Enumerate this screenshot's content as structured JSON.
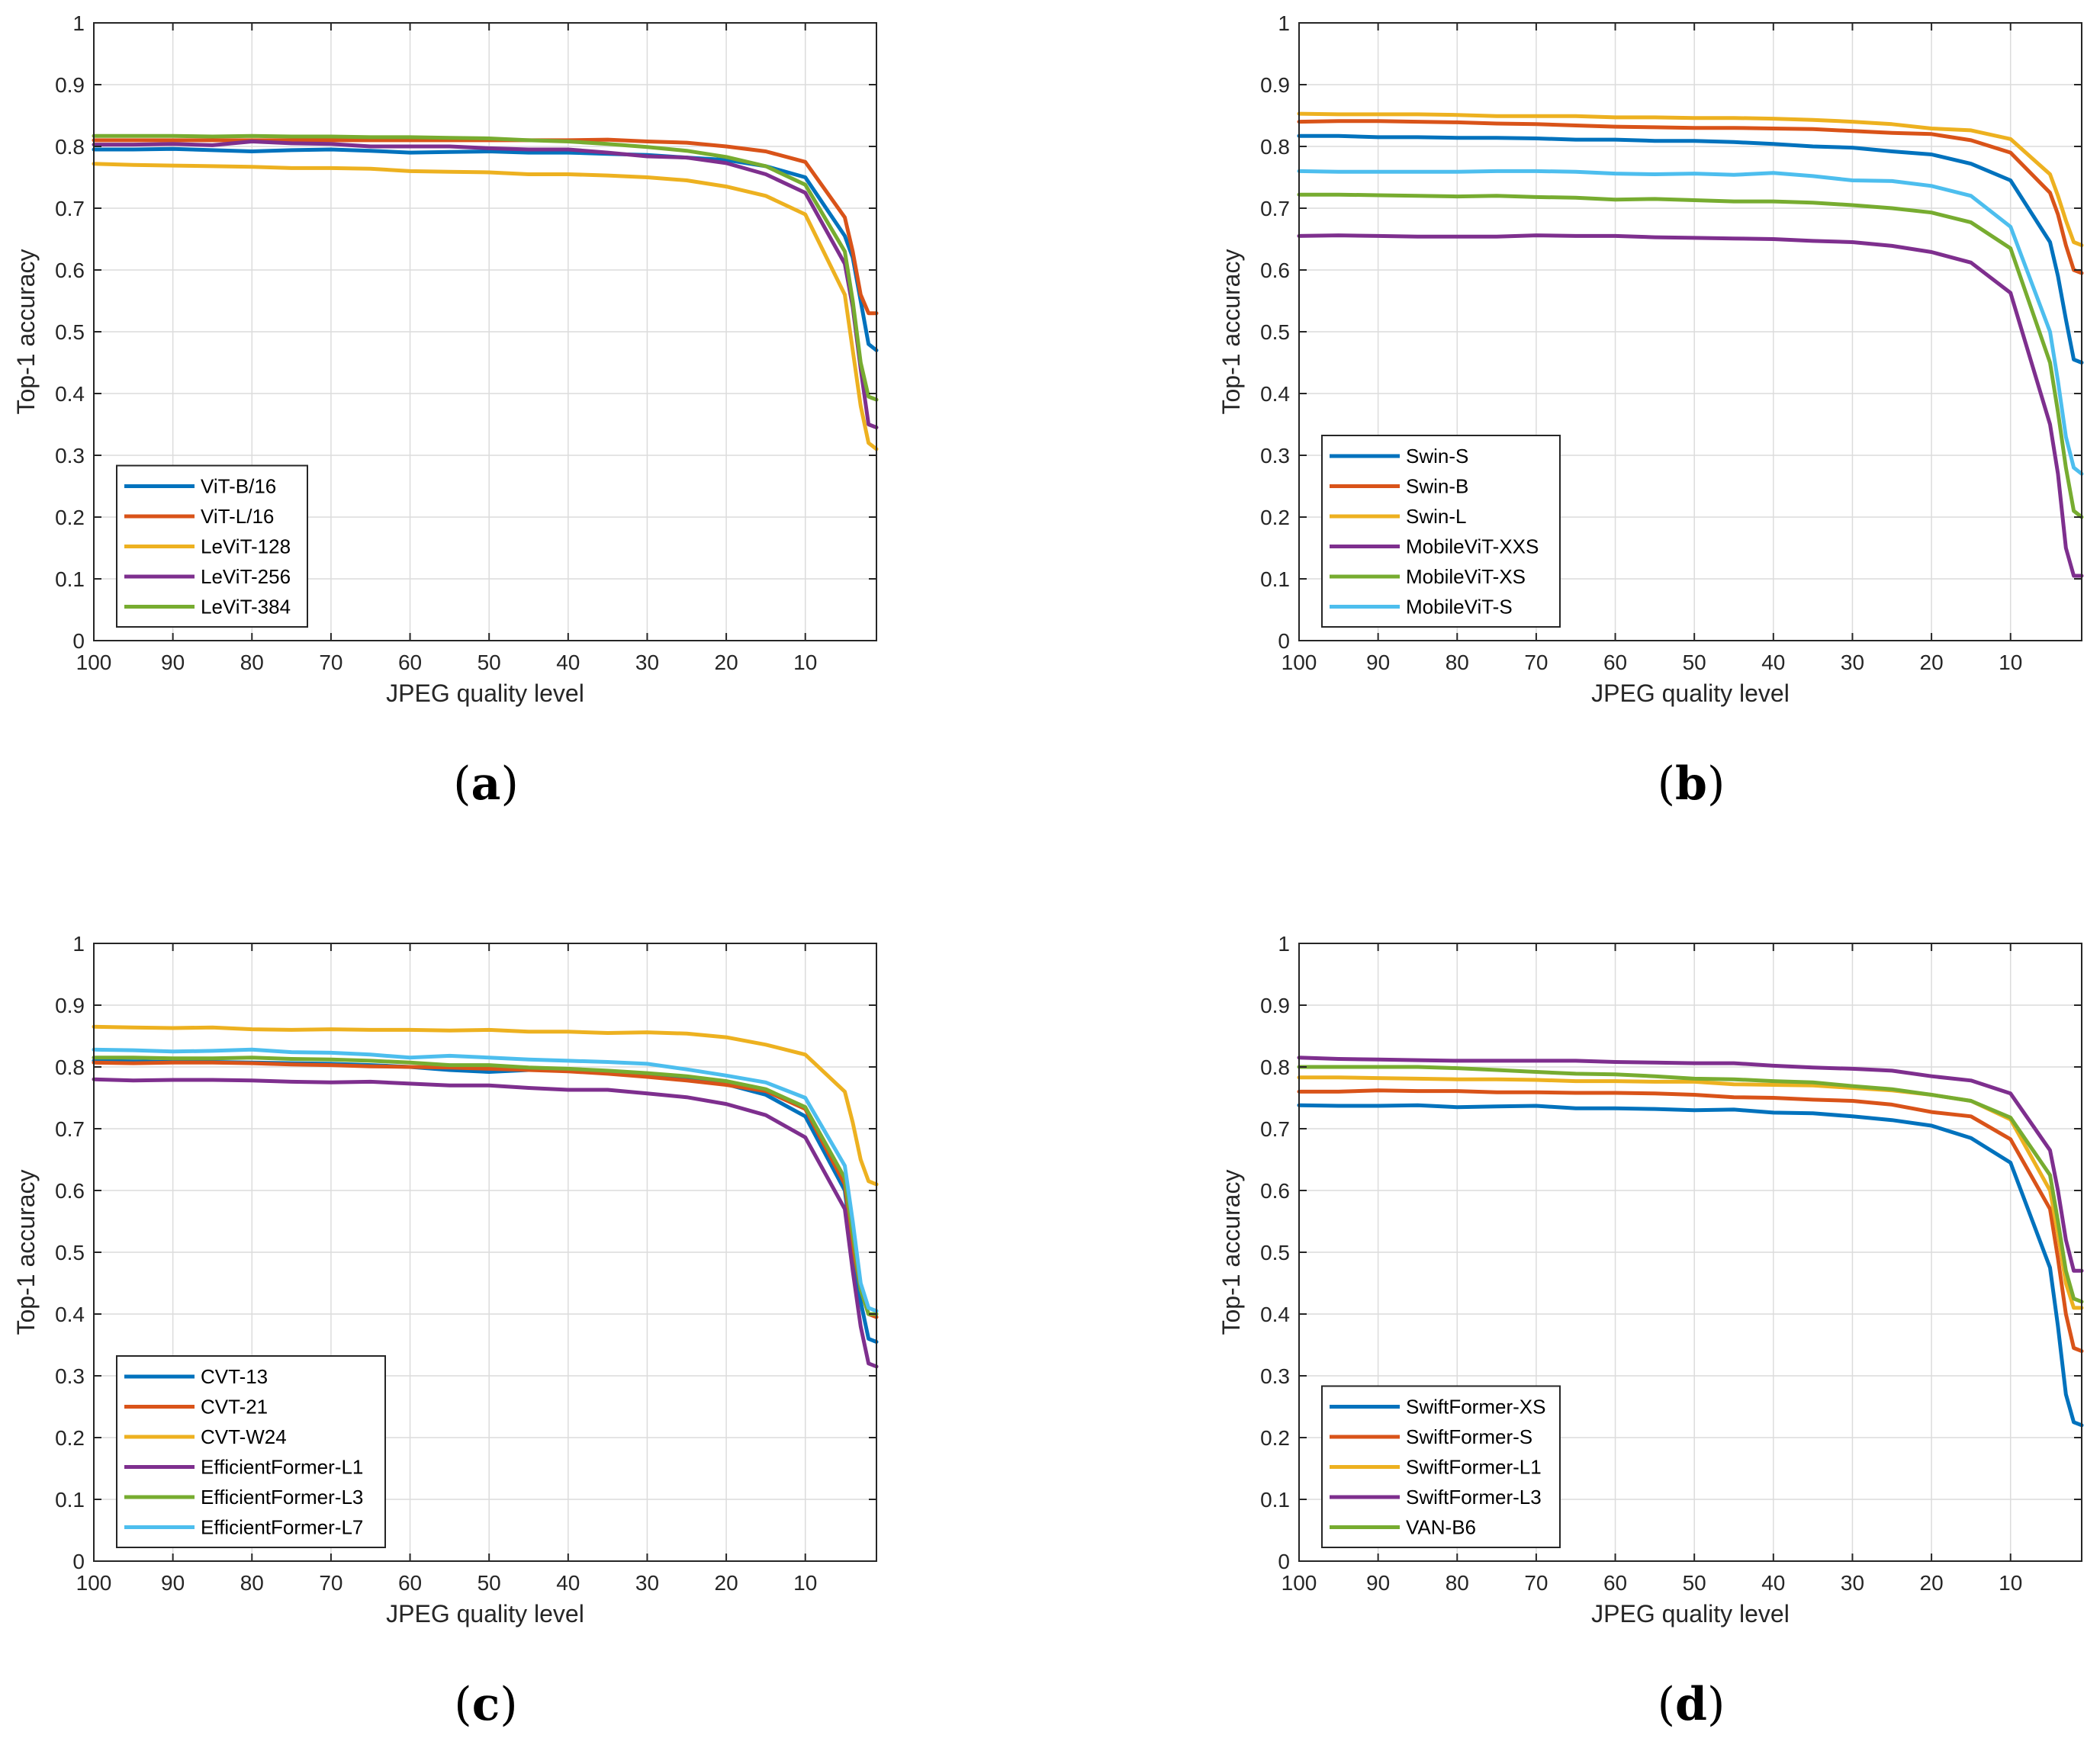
{
  "colors": {
    "blue": "#0072BD",
    "orange": "#D95319",
    "yellow": "#EDB120",
    "purple": "#7E2F8E",
    "green": "#77AC30",
    "cyan": "#4DBEEE"
  },
  "chart_data": [
    {
      "panel_label": "a",
      "type": "line",
      "xlabel": "JPEG quality level",
      "ylabel": "Top-1 accuracy",
      "xlim": [
        100,
        1
      ],
      "ylim": [
        0,
        1
      ],
      "xticks": [
        100,
        90,
        80,
        70,
        60,
        50,
        40,
        30,
        20,
        10
      ],
      "yticks": [
        0,
        0.1,
        0.2,
        0.3,
        0.4,
        0.5,
        0.6,
        0.7,
        0.8,
        0.9,
        1
      ],
      "grid": true,
      "legend": "bottom-left",
      "x": [
        100,
        95,
        90,
        85,
        80,
        75,
        70,
        65,
        60,
        55,
        50,
        45,
        40,
        35,
        30,
        25,
        20,
        15,
        10,
        5,
        4,
        3,
        2,
        1
      ],
      "series": [
        {
          "name": "ViT-B/16",
          "color": "blue",
          "values": [
            0.795,
            0.795,
            0.796,
            0.794,
            0.792,
            0.794,
            0.795,
            0.793,
            0.79,
            0.791,
            0.792,
            0.79,
            0.79,
            0.788,
            0.786,
            0.782,
            0.778,
            0.768,
            0.75,
            0.655,
            0.62,
            0.55,
            0.48,
            0.47
          ]
        },
        {
          "name": "ViT-L/16",
          "color": "orange",
          "values": [
            0.81,
            0.81,
            0.81,
            0.81,
            0.81,
            0.81,
            0.81,
            0.81,
            0.81,
            0.81,
            0.81,
            0.81,
            0.81,
            0.811,
            0.808,
            0.806,
            0.8,
            0.792,
            0.775,
            0.685,
            0.63,
            0.56,
            0.53,
            0.53
          ]
        },
        {
          "name": "LeViT-128",
          "color": "yellow",
          "values": [
            0.772,
            0.77,
            0.769,
            0.768,
            0.767,
            0.765,
            0.765,
            0.764,
            0.76,
            0.759,
            0.758,
            0.755,
            0.755,
            0.753,
            0.75,
            0.745,
            0.735,
            0.72,
            0.69,
            0.56,
            0.47,
            0.38,
            0.32,
            0.31
          ]
        },
        {
          "name": "LeViT-256",
          "color": "purple",
          "values": [
            0.803,
            0.803,
            0.804,
            0.802,
            0.808,
            0.805,
            0.804,
            0.8,
            0.8,
            0.8,
            0.797,
            0.795,
            0.795,
            0.79,
            0.784,
            0.782,
            0.773,
            0.755,
            0.725,
            0.61,
            0.54,
            0.44,
            0.35,
            0.345
          ]
        },
        {
          "name": "LeViT-384",
          "color": "green",
          "values": [
            0.817,
            0.817,
            0.817,
            0.816,
            0.817,
            0.816,
            0.816,
            0.815,
            0.815,
            0.814,
            0.813,
            0.81,
            0.808,
            0.804,
            0.799,
            0.793,
            0.783,
            0.768,
            0.738,
            0.63,
            0.55,
            0.45,
            0.395,
            0.39
          ]
        }
      ]
    },
    {
      "panel_label": "b",
      "type": "line",
      "xlabel": "JPEG quality level",
      "ylabel": "Top-1 accuracy",
      "xlim": [
        100,
        1
      ],
      "ylim": [
        0,
        1
      ],
      "xticks": [
        100,
        90,
        80,
        70,
        60,
        50,
        40,
        30,
        20,
        10
      ],
      "yticks": [
        0,
        0.1,
        0.2,
        0.3,
        0.4,
        0.5,
        0.6,
        0.7,
        0.8,
        0.9,
        1
      ],
      "grid": true,
      "legend": "bottom-left",
      "x": [
        100,
        95,
        90,
        85,
        80,
        75,
        70,
        65,
        60,
        55,
        50,
        45,
        40,
        35,
        30,
        25,
        20,
        15,
        10,
        5,
        4,
        3,
        2,
        1
      ],
      "series": [
        {
          "name": "Swin-S",
          "color": "blue",
          "values": [
            0.817,
            0.817,
            0.815,
            0.815,
            0.814,
            0.814,
            0.813,
            0.811,
            0.811,
            0.809,
            0.809,
            0.807,
            0.804,
            0.8,
            0.798,
            0.792,
            0.787,
            0.772,
            0.745,
            0.645,
            0.59,
            0.52,
            0.455,
            0.45
          ]
        },
        {
          "name": "Swin-B",
          "color": "orange",
          "values": [
            0.84,
            0.841,
            0.841,
            0.84,
            0.839,
            0.837,
            0.836,
            0.834,
            0.832,
            0.831,
            0.83,
            0.83,
            0.829,
            0.828,
            0.825,
            0.822,
            0.82,
            0.81,
            0.79,
            0.725,
            0.69,
            0.64,
            0.6,
            0.595
          ]
        },
        {
          "name": "Swin-L",
          "color": "yellow",
          "values": [
            0.853,
            0.852,
            0.852,
            0.852,
            0.851,
            0.849,
            0.849,
            0.849,
            0.847,
            0.847,
            0.846,
            0.846,
            0.845,
            0.843,
            0.84,
            0.836,
            0.829,
            0.826,
            0.812,
            0.755,
            0.72,
            0.68,
            0.645,
            0.64
          ]
        },
        {
          "name": "MobileViT-XXS",
          "color": "purple",
          "values": [
            0.655,
            0.656,
            0.655,
            0.654,
            0.654,
            0.654,
            0.656,
            0.655,
            0.655,
            0.653,
            0.652,
            0.651,
            0.65,
            0.647,
            0.645,
            0.639,
            0.629,
            0.612,
            0.563,
            0.35,
            0.27,
            0.15,
            0.105,
            0.105
          ]
        },
        {
          "name": "MobileViT-XS",
          "color": "green",
          "values": [
            0.722,
            0.722,
            0.721,
            0.72,
            0.719,
            0.72,
            0.718,
            0.717,
            0.714,
            0.715,
            0.713,
            0.711,
            0.711,
            0.709,
            0.705,
            0.7,
            0.693,
            0.677,
            0.635,
            0.45,
            0.37,
            0.28,
            0.21,
            0.2
          ]
        },
        {
          "name": "MobileViT-S",
          "color": "cyan",
          "values": [
            0.76,
            0.759,
            0.759,
            0.759,
            0.759,
            0.76,
            0.76,
            0.759,
            0.756,
            0.755,
            0.756,
            0.754,
            0.757,
            0.752,
            0.745,
            0.744,
            0.736,
            0.72,
            0.67,
            0.5,
            0.42,
            0.33,
            0.28,
            0.27
          ]
        }
      ]
    },
    {
      "panel_label": "c",
      "type": "line",
      "xlabel": "JPEG quality level",
      "ylabel": "Top-1 accuracy",
      "xlim": [
        100,
        1
      ],
      "ylim": [
        0,
        1
      ],
      "xticks": [
        100,
        90,
        80,
        70,
        60,
        50,
        40,
        30,
        20,
        10
      ],
      "yticks": [
        0,
        0.1,
        0.2,
        0.3,
        0.4,
        0.5,
        0.6,
        0.7,
        0.8,
        0.9,
        1
      ],
      "grid": true,
      "legend": "bottom-left",
      "x": [
        100,
        95,
        90,
        85,
        80,
        75,
        70,
        65,
        60,
        55,
        50,
        45,
        40,
        35,
        30,
        25,
        20,
        15,
        10,
        5,
        4,
        3,
        2,
        1
      ],
      "series": [
        {
          "name": "CVT-13",
          "color": "blue",
          "values": [
            0.81,
            0.809,
            0.808,
            0.808,
            0.807,
            0.806,
            0.805,
            0.803,
            0.8,
            0.795,
            0.792,
            0.795,
            0.795,
            0.79,
            0.787,
            0.782,
            0.772,
            0.755,
            0.72,
            0.6,
            0.5,
            0.42,
            0.36,
            0.355
          ]
        },
        {
          "name": "CVT-21",
          "color": "orange",
          "values": [
            0.807,
            0.806,
            0.807,
            0.807,
            0.806,
            0.804,
            0.803,
            0.801,
            0.8,
            0.799,
            0.797,
            0.795,
            0.793,
            0.789,
            0.784,
            0.778,
            0.771,
            0.761,
            0.732,
            0.61,
            0.51,
            0.44,
            0.4,
            0.395
          ]
        },
        {
          "name": "CVT-W24",
          "color": "yellow",
          "values": [
            0.865,
            0.864,
            0.863,
            0.864,
            0.861,
            0.86,
            0.861,
            0.86,
            0.86,
            0.859,
            0.86,
            0.857,
            0.857,
            0.855,
            0.856,
            0.854,
            0.848,
            0.836,
            0.82,
            0.76,
            0.71,
            0.65,
            0.615,
            0.61
          ]
        },
        {
          "name": "EfficientFormer-L1",
          "color": "purple",
          "values": [
            0.78,
            0.778,
            0.779,
            0.779,
            0.778,
            0.776,
            0.775,
            0.776,
            0.773,
            0.77,
            0.77,
            0.766,
            0.763,
            0.763,
            0.757,
            0.751,
            0.74,
            0.722,
            0.686,
            0.57,
            0.47,
            0.38,
            0.32,
            0.315
          ]
        },
        {
          "name": "EfficientFormer-L3",
          "color": "green",
          "values": [
            0.815,
            0.815,
            0.814,
            0.814,
            0.815,
            0.813,
            0.812,
            0.81,
            0.807,
            0.803,
            0.803,
            0.799,
            0.797,
            0.794,
            0.79,
            0.785,
            0.777,
            0.764,
            0.735,
            0.62,
            0.53,
            0.44,
            0.4,
            0.4
          ]
        },
        {
          "name": "EfficientFormer-L7",
          "color": "cyan",
          "values": [
            0.828,
            0.827,
            0.825,
            0.826,
            0.828,
            0.824,
            0.823,
            0.82,
            0.815,
            0.818,
            0.815,
            0.812,
            0.81,
            0.808,
            0.805,
            0.796,
            0.786,
            0.775,
            0.75,
            0.64,
            0.55,
            0.45,
            0.41,
            0.405
          ]
        }
      ]
    },
    {
      "panel_label": "d",
      "type": "line",
      "xlabel": "JPEG quality level",
      "ylabel": "Top-1 accuracy",
      "xlim": [
        100,
        1
      ],
      "ylim": [
        0,
        1
      ],
      "xticks": [
        100,
        90,
        80,
        70,
        60,
        50,
        40,
        30,
        20,
        10
      ],
      "yticks": [
        0,
        0.1,
        0.2,
        0.3,
        0.4,
        0.5,
        0.6,
        0.7,
        0.8,
        0.9,
        1
      ],
      "grid": true,
      "legend": "bottom-left",
      "x": [
        100,
        95,
        90,
        85,
        80,
        75,
        70,
        65,
        60,
        55,
        50,
        45,
        40,
        35,
        30,
        25,
        20,
        15,
        10,
        5,
        4,
        3,
        2,
        1
      ],
      "series": [
        {
          "name": "SwiftFormer-XS",
          "color": "blue",
          "values": [
            0.738,
            0.737,
            0.737,
            0.738,
            0.735,
            0.736,
            0.737,
            0.733,
            0.733,
            0.732,
            0.73,
            0.731,
            0.726,
            0.725,
            0.72,
            0.714,
            0.705,
            0.685,
            0.645,
            0.475,
            0.38,
            0.27,
            0.225,
            0.22
          ]
        },
        {
          "name": "SwiftFormer-S",
          "color": "orange",
          "values": [
            0.76,
            0.76,
            0.762,
            0.761,
            0.761,
            0.759,
            0.759,
            0.758,
            0.758,
            0.757,
            0.755,
            0.751,
            0.75,
            0.747,
            0.745,
            0.739,
            0.727,
            0.72,
            0.683,
            0.57,
            0.49,
            0.4,
            0.345,
            0.34
          ]
        },
        {
          "name": "SwiftFormer-L1",
          "color": "yellow",
          "values": [
            0.783,
            0.783,
            0.782,
            0.781,
            0.78,
            0.78,
            0.779,
            0.777,
            0.777,
            0.776,
            0.776,
            0.772,
            0.771,
            0.77,
            0.766,
            0.762,
            0.755,
            0.745,
            0.715,
            0.6,
            0.53,
            0.45,
            0.41,
            0.41
          ]
        },
        {
          "name": "SwiftFormer-L3",
          "color": "purple",
          "values": [
            0.815,
            0.813,
            0.812,
            0.811,
            0.81,
            0.81,
            0.81,
            0.81,
            0.808,
            0.807,
            0.806,
            0.806,
            0.802,
            0.799,
            0.797,
            0.794,
            0.785,
            0.778,
            0.757,
            0.665,
            0.6,
            0.52,
            0.47,
            0.47
          ]
        },
        {
          "name": "VAN-B6",
          "color": "green",
          "values": [
            0.8,
            0.8,
            0.8,
            0.8,
            0.798,
            0.795,
            0.792,
            0.789,
            0.788,
            0.785,
            0.781,
            0.78,
            0.777,
            0.775,
            0.769,
            0.764,
            0.755,
            0.745,
            0.718,
            0.625,
            0.55,
            0.47,
            0.425,
            0.42
          ]
        }
      ]
    }
  ]
}
